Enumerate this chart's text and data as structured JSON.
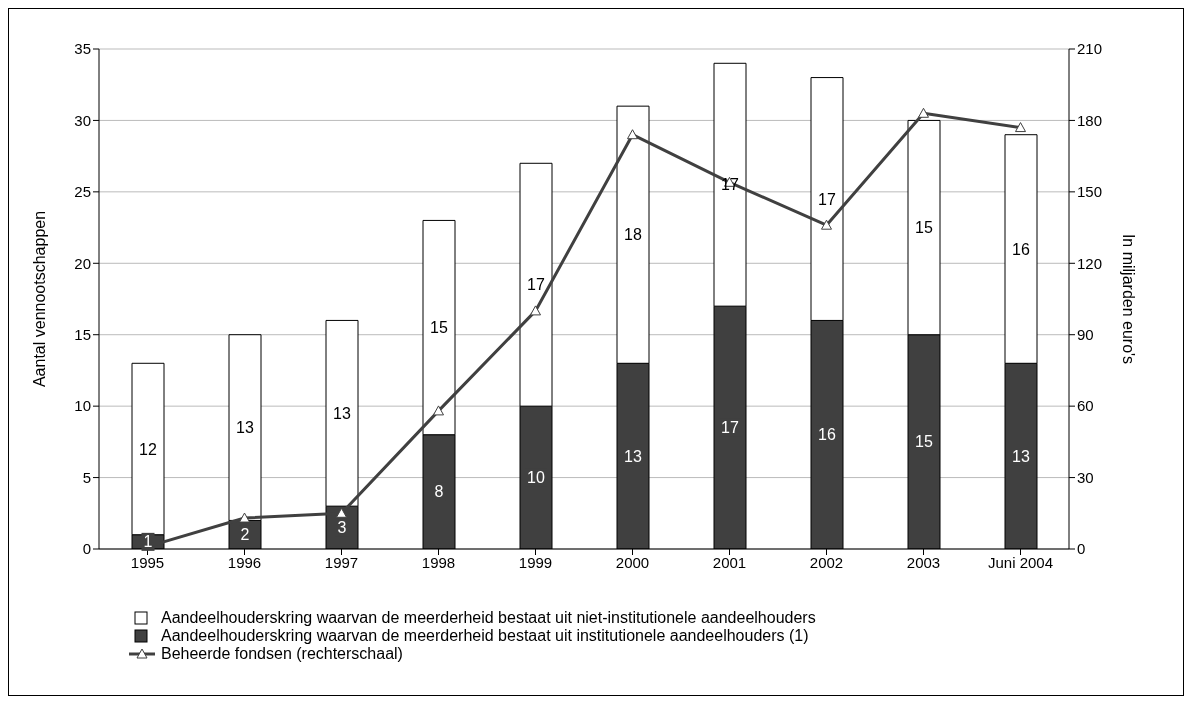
{
  "chart_data": {
    "type": "bar",
    "stacked": true,
    "ylabel": "Aantal vennootschappen",
    "y2label": "In miljarden euro's",
    "categories": [
      "1995",
      "1996",
      "1997",
      "1998",
      "1999",
      "2000",
      "2001",
      "2002",
      "2003",
      "Juni 2004"
    ],
    "series": [
      {
        "name": "Aandeelhouderskring waarvan de meerderheid bestaat uit institutionele aandeelhouders (1)",
        "color": "#404040",
        "values": [
          1,
          2,
          3,
          8,
          10,
          13,
          17,
          16,
          15,
          13
        ],
        "value_labels": [
          "1",
          "2",
          "3",
          "8",
          "10",
          "13",
          "17",
          "16",
          "15",
          "13"
        ]
      },
      {
        "name": "Aandeelhouderskring waarvan de meerderheid bestaat uit niet-institutionele aandeelhouders",
        "color": "#ffffff",
        "values": [
          12,
          13,
          13,
          15,
          17,
          18,
          17,
          17,
          15,
          16
        ],
        "value_labels": [
          "12",
          "13",
          "13",
          "15",
          "17",
          "18",
          "17",
          "17",
          "15",
          "16"
        ]
      },
      {
        "name": "Beheerde fondsen (rechterschaal)",
        "type": "line",
        "axis": "y2",
        "color": "#404040",
        "marker": "triangle",
        "values": [
          1,
          13,
          15,
          58,
          100,
          174,
          154,
          136,
          183,
          177
        ]
      }
    ],
    "ylim": [
      0,
      35
    ],
    "yticks": [
      0,
      5,
      10,
      15,
      20,
      25,
      30,
      35
    ],
    "y2lim": [
      0,
      210
    ],
    "y2ticks": [
      0,
      30,
      60,
      90,
      120,
      150,
      180,
      210
    ],
    "grid": "y",
    "legend": "bottom left"
  }
}
